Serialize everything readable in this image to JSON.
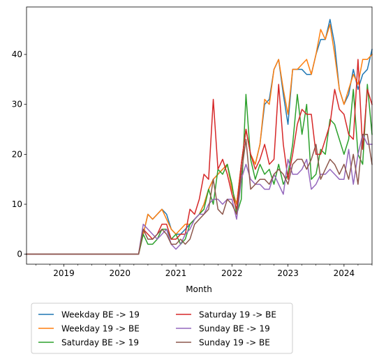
{
  "chart_data": {
    "type": "line",
    "xlabel": "Month",
    "ylabel": "",
    "title": "",
    "x_start": "2018-05",
    "x_end": "2024-07",
    "xtick_labels": [
      "2019",
      "2020",
      "2021",
      "2022",
      "2023",
      "2024"
    ],
    "xtick_dates": [
      "2019-01",
      "2020-01",
      "2021-01",
      "2022-01",
      "2023-01",
      "2024-01"
    ],
    "ylim": [
      -2,
      49.5
    ],
    "yticks": [
      0,
      10,
      20,
      30,
      40
    ],
    "grid": false,
    "legend_placement": "below plot, 2 columns",
    "x": [
      "2018-05",
      "2018-06",
      "2018-07",
      "2018-08",
      "2018-09",
      "2018-10",
      "2018-11",
      "2018-12",
      "2019-01",
      "2019-02",
      "2019-03",
      "2019-04",
      "2019-05",
      "2019-06",
      "2019-07",
      "2019-08",
      "2019-09",
      "2019-10",
      "2019-11",
      "2019-12",
      "2020-01",
      "2020-02",
      "2020-03",
      "2020-04",
      "2020-05",
      "2020-06",
      "2020-07",
      "2020-08",
      "2020-09",
      "2020-10",
      "2020-11",
      "2020-12",
      "2021-01",
      "2021-02",
      "2021-03",
      "2021-04",
      "2021-05",
      "2021-06",
      "2021-07",
      "2021-08",
      "2021-09",
      "2021-10",
      "2021-11",
      "2021-12",
      "2022-01",
      "2022-02",
      "2022-03",
      "2022-04",
      "2022-05",
      "2022-06",
      "2022-07",
      "2022-08",
      "2022-09",
      "2022-10",
      "2022-11",
      "2022-12",
      "2023-01",
      "2023-02",
      "2023-03",
      "2023-04",
      "2023-05",
      "2023-06",
      "2023-07",
      "2023-08",
      "2023-09",
      "2023-10",
      "2023-11",
      "2023-12",
      "2024-01",
      "2024-02",
      "2024-03",
      "2024-04",
      "2024-05",
      "2024-06",
      "2024-07"
    ],
    "series": [
      {
        "name": "Weekday BE -> 19",
        "color": "#1f77b4",
        "values": [
          0,
          0,
          0,
          0,
          0,
          0,
          0,
          0,
          0,
          0,
          0,
          0,
          0,
          0,
          0,
          0,
          0,
          0,
          0,
          0,
          0,
          0,
          0,
          0,
          0,
          4,
          8,
          7,
          8,
          9,
          8,
          5,
          4,
          4,
          5,
          6,
          7,
          8,
          10,
          13,
          15,
          16,
          17,
          18,
          13,
          10,
          18,
          25,
          20,
          18,
          22,
          30,
          31,
          37,
          39,
          32,
          26,
          37,
          37,
          37,
          36,
          36,
          40,
          43,
          43,
          47,
          42,
          33,
          30,
          32,
          37,
          33,
          36,
          37,
          41
        ]
      },
      {
        "name": "Weekday 19 -> BE",
        "color": "#ff7f0e",
        "values": [
          0,
          0,
          0,
          0,
          0,
          0,
          0,
          0,
          0,
          0,
          0,
          0,
          0,
          0,
          0,
          0,
          0,
          0,
          0,
          0,
          0,
          0,
          0,
          0,
          0,
          4,
          8,
          7,
          8,
          9,
          7,
          5,
          4,
          5,
          6,
          6,
          7,
          8,
          10,
          13,
          15,
          16,
          17,
          18,
          13,
          10,
          18,
          25,
          20,
          18,
          22,
          31,
          30,
          37,
          39,
          33,
          28,
          37,
          37,
          38,
          39,
          36,
          40,
          45,
          43,
          46,
          40,
          33,
          30,
          33,
          36,
          34,
          39,
          39,
          40
        ]
      },
      {
        "name": "Saturday BE -> 19",
        "color": "#2ca02c",
        "values": [
          0,
          0,
          0,
          0,
          0,
          0,
          0,
          0,
          0,
          0,
          0,
          0,
          0,
          0,
          0,
          0,
          0,
          0,
          0,
          0,
          0,
          0,
          0,
          0,
          0,
          4,
          2,
          2,
          3,
          5,
          5,
          3,
          4,
          2,
          3,
          6,
          7,
          8,
          9,
          13,
          10,
          17,
          16,
          18,
          14,
          8,
          11,
          32,
          19,
          15,
          18,
          16,
          17,
          14,
          18,
          14,
          16,
          22,
          32,
          24,
          30,
          15,
          16,
          21,
          20,
          27,
          26,
          23,
          20,
          23,
          33,
          20,
          18,
          34,
          24
        ]
      },
      {
        "name": "Saturday 19 -> BE",
        "color": "#d62728",
        "values": [
          0,
          0,
          0,
          0,
          0,
          0,
          0,
          0,
          0,
          0,
          0,
          0,
          0,
          0,
          0,
          0,
          0,
          0,
          0,
          0,
          0,
          0,
          0,
          0,
          0,
          5,
          4,
          3,
          4,
          6,
          6,
          3,
          3,
          4,
          4,
          9,
          8,
          11,
          16,
          15,
          31,
          17,
          19,
          16,
          12,
          9,
          18,
          25,
          20,
          17,
          19,
          22,
          18,
          19,
          34,
          22,
          15,
          20,
          26,
          29,
          28,
          28,
          20,
          20,
          23,
          26,
          33,
          29,
          28,
          24,
          23,
          39,
          21,
          33,
          30
        ]
      },
      {
        "name": "Sunday BE -> 19",
        "color": "#9467bd",
        "values": [
          0,
          0,
          0,
          0,
          0,
          0,
          0,
          0,
          0,
          0,
          0,
          0,
          0,
          0,
          0,
          0,
          0,
          0,
          0,
          0,
          0,
          0,
          0,
          0,
          0,
          6,
          5,
          4,
          3,
          4,
          5,
          2,
          1,
          2,
          4,
          5,
          7,
          8,
          8,
          10,
          11,
          11,
          10,
          11,
          11,
          7,
          15,
          18,
          15,
          14,
          14,
          13,
          13,
          16,
          14,
          12,
          19,
          16,
          16,
          17,
          19,
          13,
          14,
          16,
          16,
          17,
          16,
          15,
          15,
          21,
          14,
          20,
          24,
          22,
          22
        ]
      },
      {
        "name": "Sunday 19 -> BE",
        "color": "#8c564b",
        "values": [
          0,
          0,
          0,
          0,
          0,
          0,
          0,
          0,
          0,
          0,
          0,
          0,
          0,
          0,
          0,
          0,
          0,
          0,
          0,
          0,
          0,
          0,
          0,
          0,
          0,
          5,
          3,
          3,
          4,
          5,
          4,
          2,
          2,
          3,
          2,
          3,
          6,
          7,
          8,
          9,
          15,
          9,
          8,
          11,
          10,
          8,
          16,
          23,
          13,
          14,
          15,
          15,
          14,
          16,
          17,
          16,
          14,
          18,
          19,
          19,
          17,
          19,
          22,
          15,
          17,
          19,
          18,
          16,
          18,
          15,
          20,
          14,
          24,
          24,
          18
        ]
      }
    ]
  }
}
